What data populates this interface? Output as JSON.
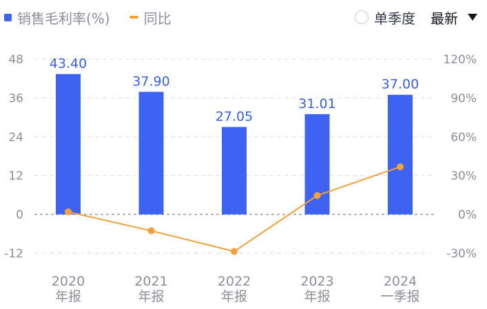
{
  "legend": {
    "bar_series": "销售毛利率(%)",
    "line_series": "同比",
    "period_toggle": "单季度",
    "sort_dropdown": "最新"
  },
  "colors": {
    "bar": "#3e63f2",
    "line": "#f0a13a",
    "grid": "#e2e4e8",
    "zero_line": "#9aa0a8"
  },
  "chart_data": {
    "type": "bar+line",
    "categories": [
      [
        "2020",
        "年报"
      ],
      [
        "2021",
        "年报"
      ],
      [
        "2022",
        "年报"
      ],
      [
        "2023",
        "年报"
      ],
      [
        "2024",
        "一季报"
      ]
    ],
    "series": [
      {
        "name": "销售毛利率(%)",
        "type": "bar",
        "axis": "left",
        "values": [
          43.4,
          37.9,
          27.05,
          31.01,
          37.0
        ],
        "labels": [
          "43.40",
          "37.90",
          "27.05",
          "31.01",
          "37.00"
        ]
      },
      {
        "name": "同比",
        "type": "line",
        "axis": "right",
        "values": [
          2,
          -12.6,
          -28.6,
          14.6,
          36.8
        ]
      }
    ],
    "left_axis": {
      "ticks": [
        48,
        36,
        24,
        12,
        0,
        -12
      ],
      "labels": [
        "48",
        "36",
        "24",
        "12",
        "0",
        "-12"
      ],
      "range": [
        -12,
        48
      ]
    },
    "right_axis": {
      "ticks": [
        120,
        90,
        60,
        30,
        0,
        -30
      ],
      "labels": [
        "120%",
        "90%",
        "60%",
        "30%",
        "0%",
        "-30%"
      ],
      "range": [
        -30,
        120
      ]
    },
    "grid": true
  }
}
